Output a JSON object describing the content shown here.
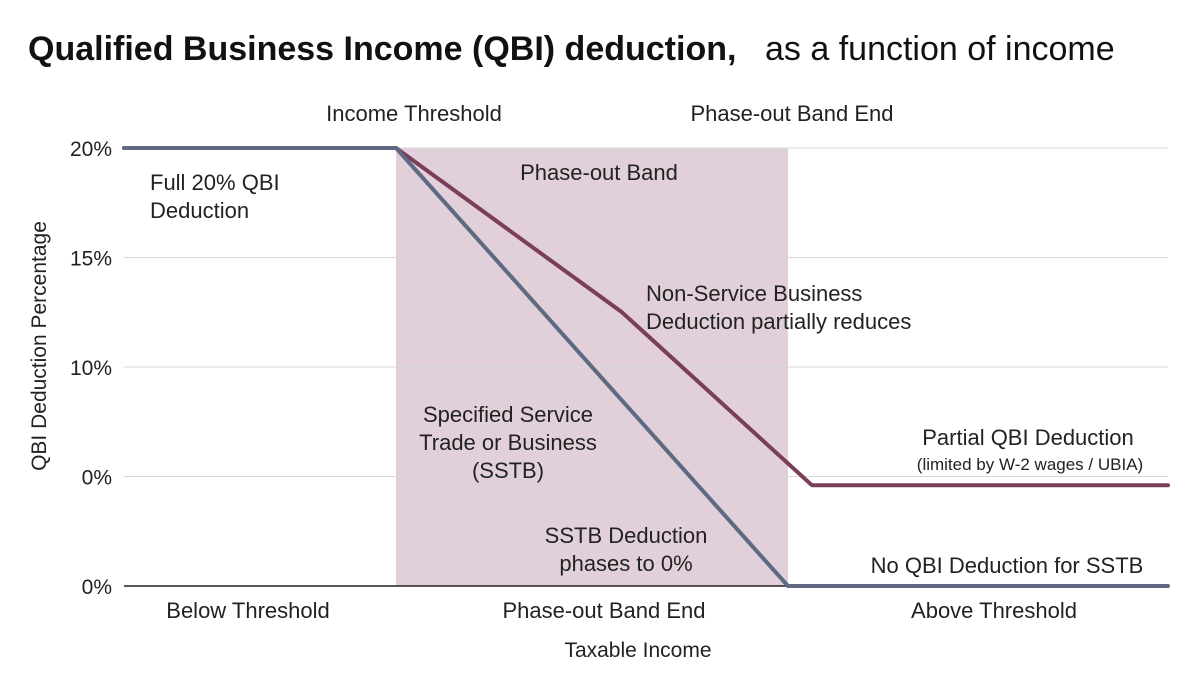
{
  "chart_data": {
    "type": "line",
    "title": "Qualified Business Income (QBI) deduction,",
    "subtitle": "as a function of income",
    "xlabel": "Taxable Income",
    "ylabel": "QBI Deduction Percentage",
    "y_tick_labels": [
      "20%",
      "15%",
      "10%",
      "0%",
      "0%"
    ],
    "x_categories": [
      "Below Threshold",
      "Phase-out Band End",
      "Above Threshold"
    ],
    "top_markers": [
      "Income Threshold",
      "Phase-out Band End"
    ],
    "band_label": "Phase-out Band",
    "grid": true,
    "colors": {
      "non_service": "#7a3e5a",
      "sstb": "#5f6a82",
      "band": "#dcc8d2"
    },
    "series": [
      {
        "key": "non_service",
        "points": [
          [
            0,
            20
          ],
          [
            1,
            20
          ],
          [
            1.8,
            12.5
          ],
          [
            2.5,
            4.6
          ],
          [
            4,
            4.6
          ]
        ]
      },
      {
        "key": "sstb",
        "points": [
          [
            0,
            20
          ],
          [
            1,
            20
          ],
          [
            2.4,
            0
          ],
          [
            4,
            0
          ]
        ]
      }
    ],
    "annotations": [
      {
        "key": "full",
        "lines": [
          "Full 20% QBI",
          "Deduction"
        ]
      },
      {
        "key": "nonservice",
        "lines": [
          "Non-Service Business",
          "Deduction partially reduces"
        ]
      },
      {
        "key": "sstb",
        "lines": [
          "Specified Service",
          "Trade or Business",
          "(SSTB)"
        ]
      },
      {
        "key": "sstb_zero",
        "lines": [
          "SSTB Deduction",
          "phases to 0%"
        ]
      },
      {
        "key": "partial",
        "lines": [
          "Partial QBI Deduction"
        ]
      },
      {
        "key": "partial_note",
        "lines": [
          "(limited by W-2 wages / UBIA)"
        ]
      },
      {
        "key": "no_sstb",
        "lines": [
          "No QBI Deduction for SSTB"
        ]
      }
    ]
  }
}
